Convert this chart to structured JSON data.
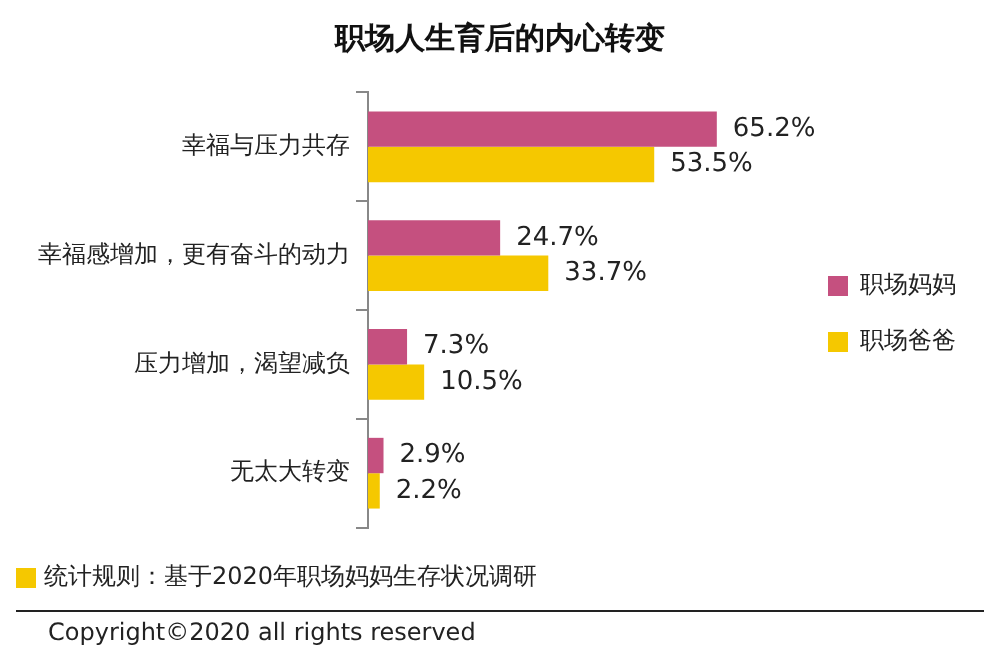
{
  "chart_data": {
    "type": "bar",
    "orientation": "horizontal",
    "title": "职场人生育后的内心转变",
    "categories": [
      "幸福与压力共存",
      "幸福感增加，更有奋斗的动力",
      "压力增加，渴望减负",
      "无太大转变"
    ],
    "series": [
      {
        "name": "职场妈妈",
        "color": "#c5507f",
        "values": [
          65.2,
          24.7,
          7.3,
          2.9
        ],
        "value_labels": [
          "65.2%",
          "24.7%",
          "7.3%",
          "2.9%"
        ]
      },
      {
        "name": "职场爸爸",
        "color": "#f5c800",
        "values": [
          53.5,
          33.7,
          10.5,
          2.2
        ],
        "value_labels": [
          "53.5%",
          "33.7%",
          "10.5%",
          "2.2%"
        ]
      }
    ],
    "legend": "right",
    "annotations": [
      "统计规则：基于2020年职场妈妈生存状况调研",
      "Copyright©2020 all rights reserved"
    ]
  }
}
